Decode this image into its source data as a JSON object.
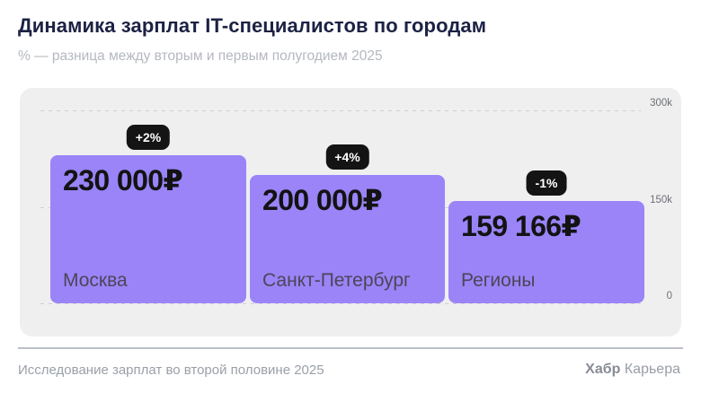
{
  "header": {
    "title": "Динамика зарплат IT-специалистов по городам",
    "subtitle": "% — разница между вторым и первым полугодием 2025"
  },
  "chart_data": {
    "type": "bar",
    "title": "Динамика зарплат IT-специалистов по городам",
    "subtitle": "% — разница между вторым и первым полугодием 2025",
    "categories": [
      "Москва",
      "Санкт-Петербург",
      "Регионы"
    ],
    "values": [
      230000,
      200000,
      159166
    ],
    "value_labels": [
      "230 000₽",
      "200 000₽",
      "159 166₽"
    ],
    "change_labels": [
      "+2%",
      "+4%",
      "-1%"
    ],
    "ylim": [
      0,
      300000
    ],
    "yticks": [
      0,
      150000,
      300000
    ],
    "ytick_labels": [
      "0",
      "150k",
      "300k"
    ],
    "grid": "horizontal dashed",
    "legend": "none",
    "bar_color": "#9a84f8",
    "currency": "₽"
  },
  "footer": {
    "source": "Исследование зарплат во второй половине 2025",
    "brand_bold": "Хабр",
    "brand_regular": " Карьера"
  },
  "colors": {
    "accent_purple": "#9a84f8",
    "panel_background": "#efefef",
    "title_navy": "#1c2243",
    "badge_background": "#141414",
    "badge_text": "#ffffff",
    "value_text": "#131313",
    "city_text": "#4b4657",
    "axis_text": "#6e7077",
    "muted_text": "#9aa0a8"
  }
}
